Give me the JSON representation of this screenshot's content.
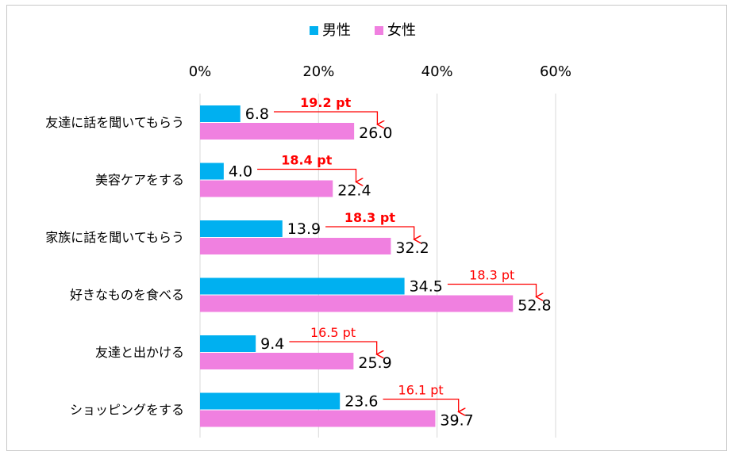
{
  "chart_data": {
    "type": "bar",
    "orientation": "horizontal",
    "categories": [
      "友達に話を聞いてもらう",
      "美容ケアをする",
      "家族に話を聞いてもらう",
      "好きなものを食べる",
      "友達と出かける",
      "ショッピングをする"
    ],
    "series": [
      {
        "name": "男性",
        "color": "#00b0f0",
        "values": [
          6.8,
          4.0,
          13.9,
          34.5,
          9.4,
          23.6
        ]
      },
      {
        "name": "女性",
        "color": "#f080e0",
        "values": [
          26.0,
          22.4,
          32.2,
          52.8,
          25.9,
          39.7
        ]
      }
    ],
    "value_labels": {
      "男性": [
        "6.8",
        "4.0",
        "13.9",
        "34.5",
        "9.4",
        "23.6"
      ],
      "女性": [
        "26.0",
        "22.4",
        "32.2",
        "52.8",
        "25.9",
        "39.7"
      ]
    },
    "annotations": [
      "19.2 pt",
      "18.4 pt",
      "18.3 pt",
      "18.3 pt",
      "16.5 pt",
      "16.1 pt"
    ],
    "annotation_bold": [
      true,
      true,
      true,
      false,
      false,
      false
    ],
    "annotation_color": "#ff0000",
    "x_ticks": [
      "0%",
      "20%",
      "40%",
      "60%"
    ],
    "xlim": [
      0,
      60
    ],
    "grid": true,
    "legend_position": "top"
  }
}
